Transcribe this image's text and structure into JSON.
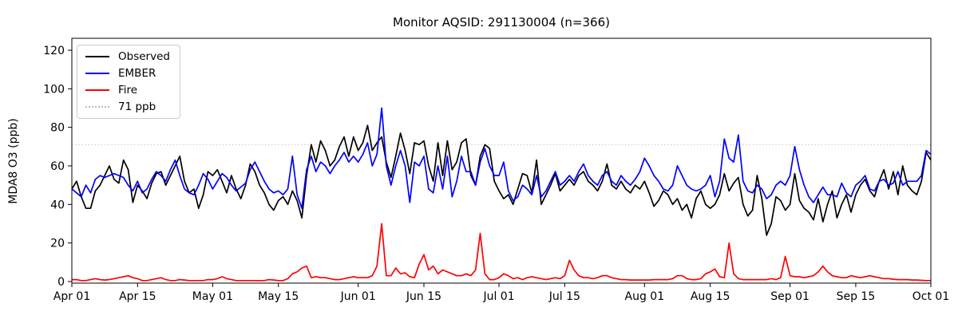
{
  "chart_data": {
    "type": "line",
    "title": "Monitor AQSID: 291130004 (n=366)",
    "xlabel": "",
    "ylabel": "MDA8 O3 (ppb)",
    "ylim": [
      -2,
      126
    ],
    "y_ticks": [
      0,
      20,
      40,
      60,
      80,
      100,
      120
    ],
    "x_tick_labels": [
      "Apr 01",
      "Apr 15",
      "May 01",
      "May 15",
      "Jun 01",
      "Jun 15",
      "Jul 01",
      "Jul 15",
      "Aug 01",
      "Aug 15",
      "Sep 01",
      "Sep 15",
      "Oct 01"
    ],
    "x_tick_days": [
      0,
      14,
      30,
      44,
      61,
      75,
      91,
      105,
      122,
      136,
      153,
      167,
      183
    ],
    "x_range_days": 183,
    "grid": false,
    "legend_position": "upper-left",
    "threshold": {
      "label": "71 ppb",
      "value": 71,
      "color": "#d3d3d3",
      "style": "dotted"
    },
    "series": [
      {
        "name": "Observed",
        "color": "#000000",
        "values": [
          48,
          52,
          44,
          38,
          38,
          47,
          50,
          55,
          60,
          53,
          51,
          63,
          58,
          41,
          50,
          47,
          43,
          51,
          56,
          57,
          50,
          55,
          60,
          65,
          52,
          46,
          48,
          38,
          45,
          57,
          55,
          58,
          52,
          46,
          55,
          48,
          43,
          50,
          61,
          57,
          50,
          46,
          40,
          37,
          42,
          44,
          40,
          47,
          42,
          33,
          55,
          71,
          62,
          73,
          68,
          60,
          63,
          70,
          75,
          65,
          75,
          68,
          72,
          81,
          68,
          72,
          75,
          62,
          54,
          65,
          77,
          68,
          56,
          72,
          71,
          73,
          60,
          52,
          72,
          55,
          73,
          58,
          62,
          72,
          74,
          55,
          50,
          65,
          71,
          69,
          52,
          47,
          43,
          45,
          40,
          48,
          56,
          55,
          46,
          63,
          40,
          45,
          50,
          56,
          47,
          50,
          53,
          50,
          55,
          57,
          52,
          50,
          47,
          52,
          61,
          50,
          48,
          52,
          48,
          46,
          50,
          48,
          52,
          46,
          39,
          42,
          47,
          45,
          40,
          43,
          37,
          40,
          33,
          43,
          47,
          40,
          38,
          40,
          45,
          56,
          47,
          51,
          54,
          40,
          34,
          37,
          55,
          43,
          24,
          30,
          44,
          42,
          37,
          40,
          56,
          42,
          38,
          36,
          32,
          43,
          31,
          40,
          47,
          33,
          40,
          45,
          36,
          45,
          50,
          53,
          47,
          44,
          52,
          58,
          48,
          57,
          45,
          60,
          50,
          47,
          45,
          52,
          67,
          63
        ]
      },
      {
        "name": "EMBER",
        "color": "#0000ff",
        "values": [
          48,
          46,
          44,
          50,
          46,
          53,
          55,
          54,
          55,
          56,
          55,
          54,
          50,
          47,
          52,
          46,
          48,
          53,
          57,
          55,
          52,
          58,
          63,
          55,
          48,
          46,
          45,
          50,
          56,
          53,
          48,
          52,
          56,
          54,
          50,
          47,
          49,
          51,
          58,
          62,
          57,
          52,
          48,
          46,
          47,
          45,
          48,
          65,
          45,
          38,
          58,
          65,
          57,
          62,
          60,
          56,
          60,
          63,
          67,
          62,
          65,
          62,
          66,
          72,
          60,
          66,
          90,
          60,
          50,
          60,
          68,
          60,
          41,
          62,
          60,
          65,
          48,
          46,
          60,
          48,
          65,
          44,
          52,
          65,
          57,
          57,
          50,
          62,
          69,
          60,
          55,
          55,
          62,
          47,
          42,
          44,
          50,
          48,
          45,
          55,
          44,
          47,
          52,
          57,
          50,
          52,
          55,
          52,
          57,
          61,
          55,
          52,
          50,
          55,
          57,
          52,
          50,
          55,
          52,
          50,
          53,
          57,
          64,
          60,
          55,
          52,
          48,
          47,
          50,
          60,
          55,
          50,
          48,
          47,
          48,
          50,
          55,
          44,
          52,
          74,
          64,
          62,
          76,
          52,
          47,
          46,
          50,
          48,
          43,
          45,
          50,
          52,
          50,
          55,
          70,
          58,
          50,
          44,
          41,
          45,
          49,
          45,
          45,
          44,
          51,
          46,
          44,
          50,
          52,
          55,
          48,
          47,
          52,
          53,
          50,
          51,
          57,
          50,
          52,
          52,
          52,
          55,
          68,
          66
        ]
      },
      {
        "name": "Fire",
        "color": "#ff0000",
        "values": [
          1,
          1,
          0.5,
          0.5,
          1,
          1.5,
          1,
          0.8,
          1,
          1.5,
          2,
          2.5,
          3,
          2,
          1.5,
          0.5,
          0.5,
          1,
          1.5,
          2,
          1,
          0.5,
          0.5,
          1,
          0.8,
          0.5,
          0.5,
          0.5,
          0.5,
          1,
          1,
          1.5,
          2.5,
          1.5,
          1,
          0.5,
          0.5,
          0.5,
          0.5,
          0.5,
          0.5,
          0.5,
          1,
          0.8,
          0.5,
          0.5,
          1.5,
          4,
          5,
          7,
          8,
          2,
          2.5,
          2,
          2,
          1.5,
          1,
          1,
          1.5,
          2,
          2.5,
          2,
          2,
          2,
          3,
          8,
          30,
          3,
          3,
          7,
          4,
          4.5,
          2.5,
          2,
          9,
          14,
          6,
          8,
          4,
          6,
          5,
          4,
          3,
          3,
          4,
          3,
          6,
          25,
          4,
          1,
          1,
          2,
          4,
          3,
          1.5,
          2,
          1,
          2,
          2.5,
          2,
          1.5,
          1,
          1.5,
          2,
          1.5,
          3,
          11,
          6,
          3,
          2,
          2,
          1.5,
          2,
          3,
          3,
          2,
          1.5,
          1,
          1,
          0.8,
          0.8,
          0.8,
          0.8,
          0.8,
          1,
          1,
          1,
          1,
          1.5,
          3,
          3,
          1.5,
          1,
          1,
          1.5,
          4,
          5,
          6.5,
          2.5,
          2,
          20,
          4,
          1.5,
          1,
          1,
          1,
          1,
          1,
          1,
          1.5,
          1,
          2,
          13,
          3,
          2.5,
          2.5,
          2,
          2.5,
          3,
          5,
          8,
          5,
          3,
          2.5,
          2,
          2,
          3,
          2.5,
          2,
          2.5,
          3,
          2.5,
          2,
          1.5,
          1.5,
          1.2,
          1,
          1,
          1,
          0.8,
          0.8,
          0.6,
          0.5,
          0.5
        ]
      }
    ]
  }
}
